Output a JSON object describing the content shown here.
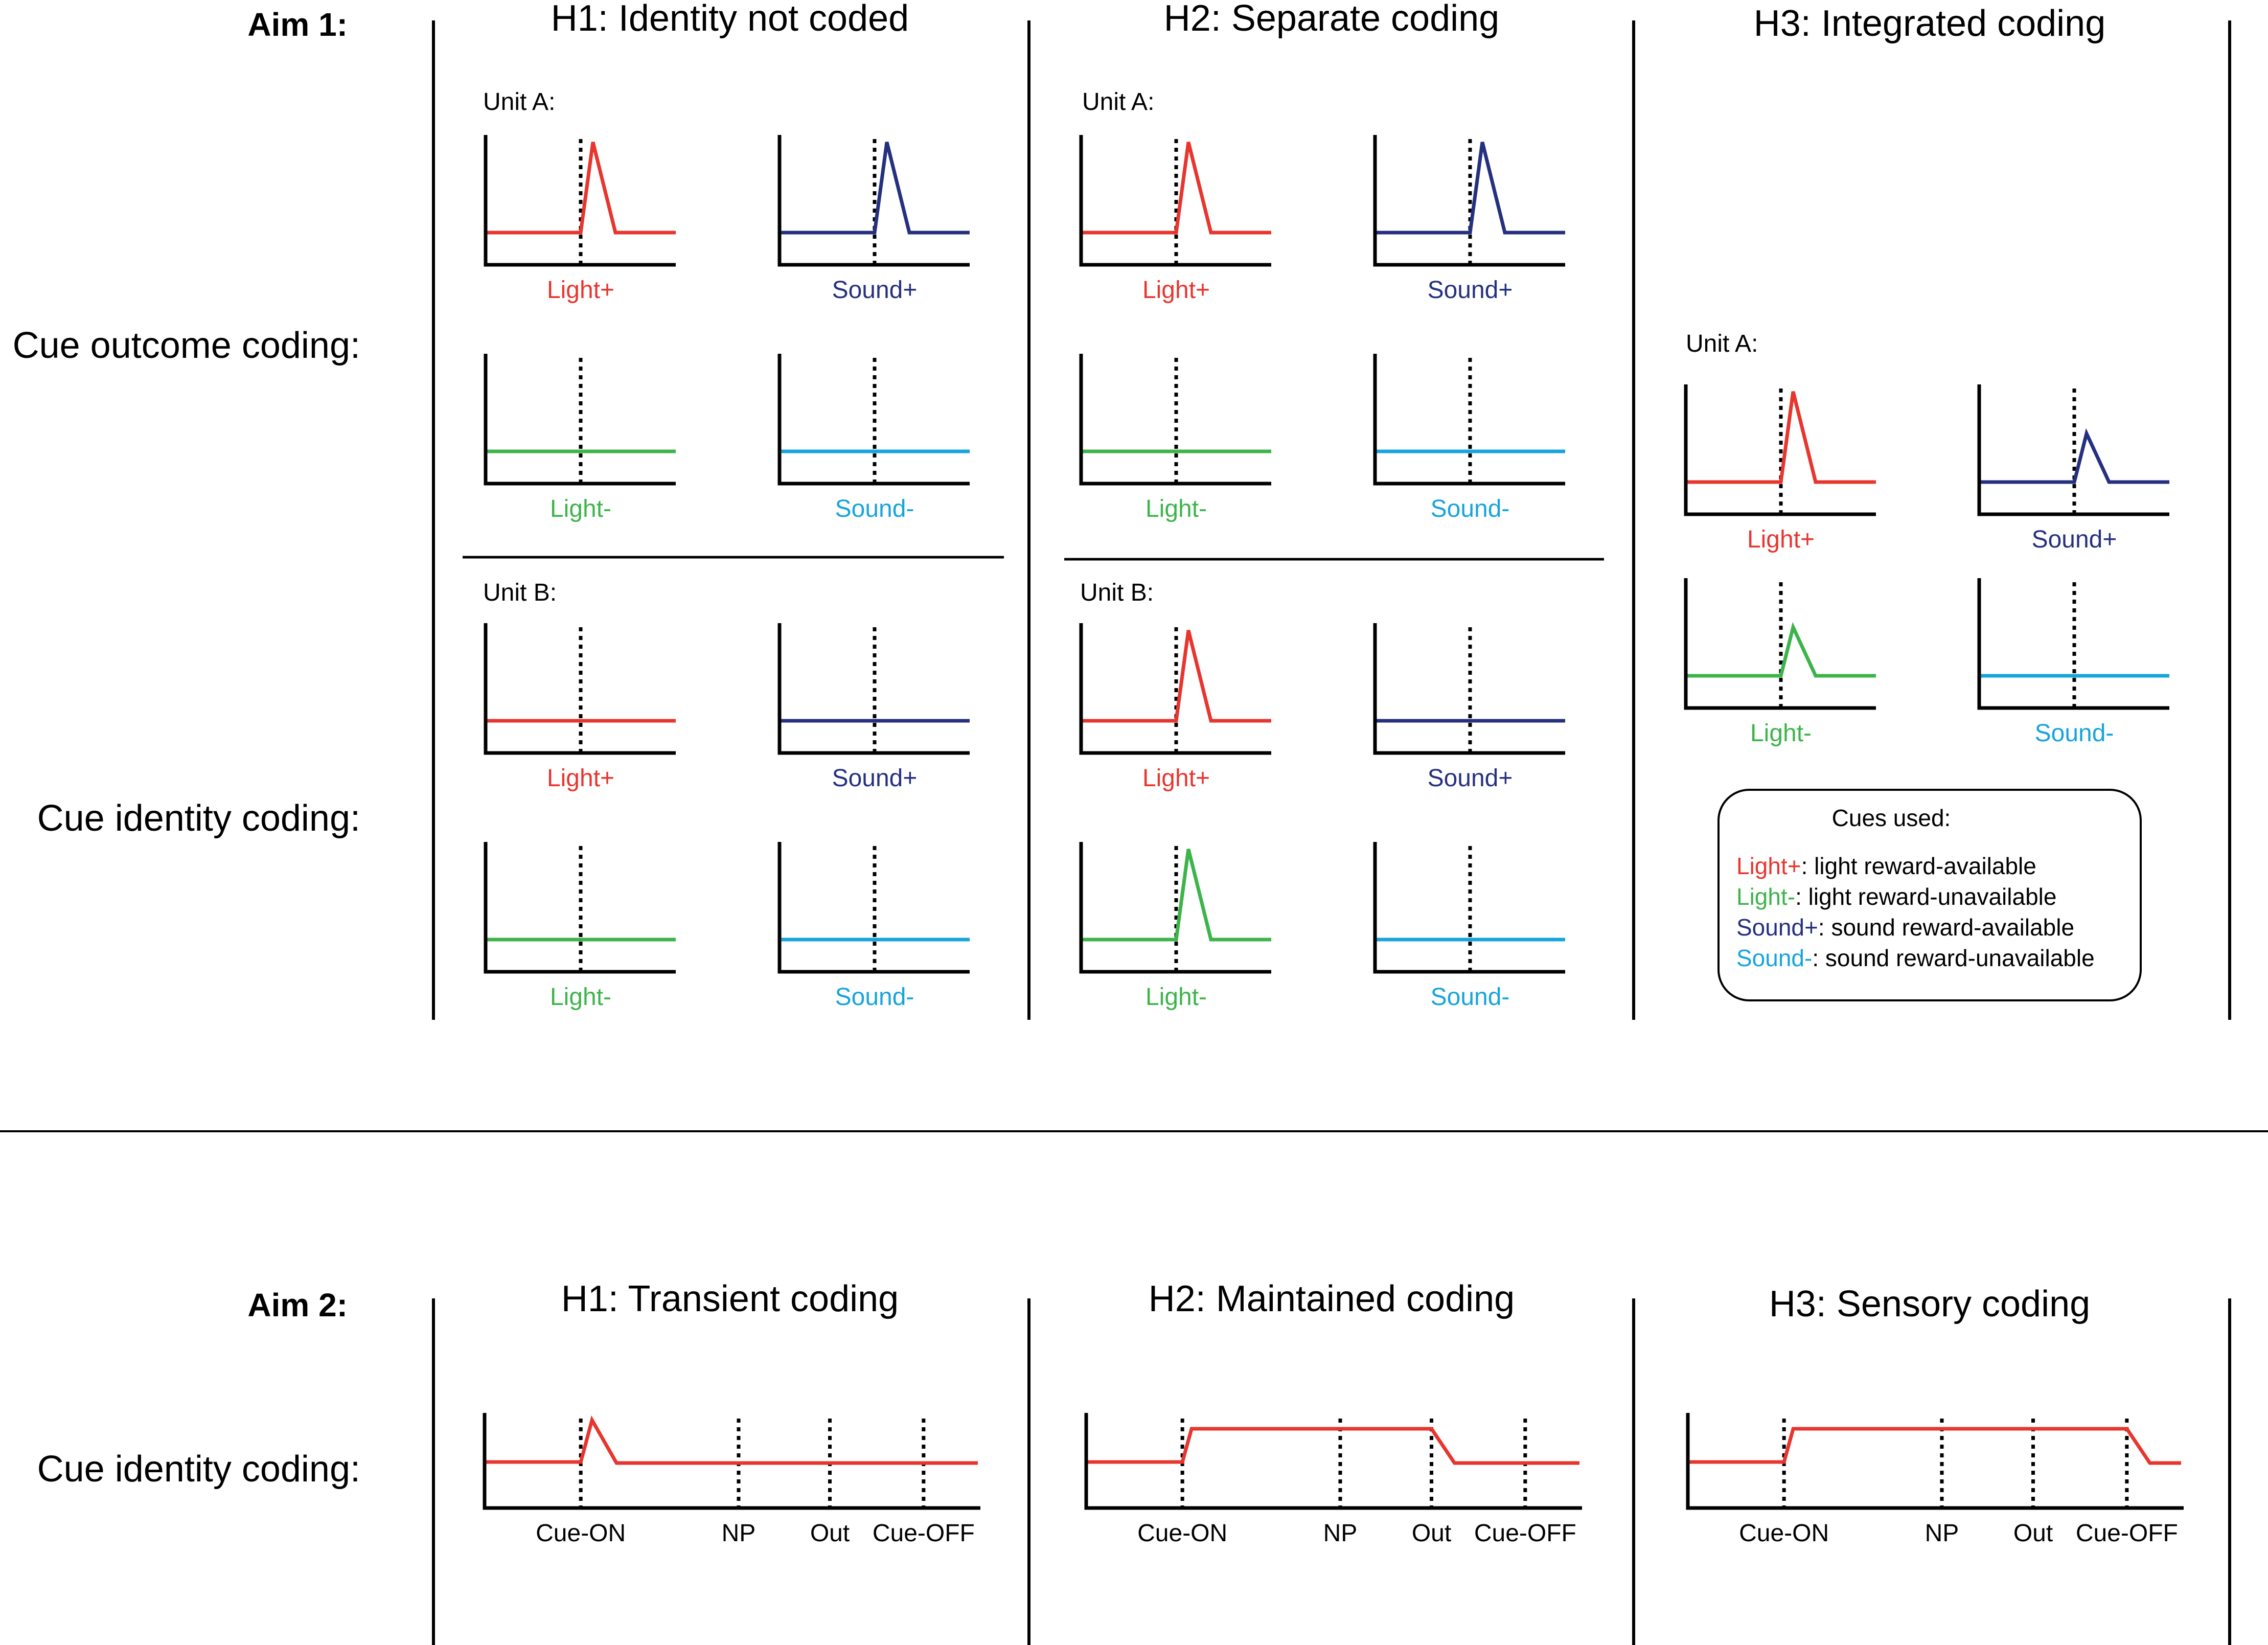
{
  "colors": {
    "light_plus": "#e8352e",
    "sound_plus": "#25307f",
    "light_minus": "#3cb44a",
    "sound_minus": "#16a4dc",
    "ink": "#000000"
  },
  "aim1": {
    "label": "Aim 1:",
    "row_labels": [
      "Cue outcome coding:",
      "Cue identity coding:"
    ],
    "columns": [
      {
        "heading": "H1: Identity not coded",
        "units": [
          {
            "label": "Unit A:",
            "panels": [
              {
                "cue": "Light+",
                "color_key": "light_plus",
                "response": "transient"
              },
              {
                "cue": "Sound+",
                "color_key": "sound_plus",
                "response": "transient"
              },
              {
                "cue": "Light-",
                "color_key": "light_minus",
                "response": "flat"
              },
              {
                "cue": "Sound-",
                "color_key": "sound_minus",
                "response": "flat"
              }
            ]
          },
          {
            "label": "Unit B:",
            "panels": [
              {
                "cue": "Light+",
                "color_key": "light_plus",
                "response": "flat"
              },
              {
                "cue": "Sound+",
                "color_key": "sound_plus",
                "response": "flat"
              },
              {
                "cue": "Light-",
                "color_key": "light_minus",
                "response": "flat"
              },
              {
                "cue": "Sound-",
                "color_key": "sound_minus",
                "response": "flat"
              }
            ]
          }
        ]
      },
      {
        "heading": "H2: Separate coding",
        "units": [
          {
            "label": "Unit A:",
            "panels": [
              {
                "cue": "Light+",
                "color_key": "light_plus",
                "response": "transient"
              },
              {
                "cue": "Sound+",
                "color_key": "sound_plus",
                "response": "transient"
              },
              {
                "cue": "Light-",
                "color_key": "light_minus",
                "response": "flat"
              },
              {
                "cue": "Sound-",
                "color_key": "sound_minus",
                "response": "flat"
              }
            ]
          },
          {
            "label": "Unit B:",
            "panels": [
              {
                "cue": "Light+",
                "color_key": "light_plus",
                "response": "transient"
              },
              {
                "cue": "Sound+",
                "color_key": "sound_plus",
                "response": "flat"
              },
              {
                "cue": "Light-",
                "color_key": "light_minus",
                "response": "transient"
              },
              {
                "cue": "Sound-",
                "color_key": "sound_minus",
                "response": "flat"
              }
            ]
          }
        ]
      },
      {
        "heading": "H3: Integrated coding",
        "units": [
          {
            "label": "Unit A:",
            "panels": [
              {
                "cue": "Light+",
                "color_key": "light_plus",
                "response": "transient"
              },
              {
                "cue": "Sound+",
                "color_key": "sound_plus",
                "response": "transient-small"
              },
              {
                "cue": "Light-",
                "color_key": "light_minus",
                "response": "transient-small"
              },
              {
                "cue": "Sound-",
                "color_key": "sound_minus",
                "response": "flat"
              }
            ]
          }
        ]
      }
    ],
    "legend": {
      "title": "Cues used:",
      "items": [
        {
          "cue": "Light+",
          "text": ": light reward-available",
          "color_key": "light_plus"
        },
        {
          "cue": "Light-",
          "text": ": light reward-unavailable",
          "color_key": "light_minus"
        },
        {
          "cue": "Sound+",
          "text": ": sound reward-available",
          "color_key": "sound_plus"
        },
        {
          "cue": "Sound-",
          "text": ": sound reward-unavailable",
          "color_key": "sound_minus"
        }
      ]
    }
  },
  "aim2": {
    "label": "Aim 2:",
    "row_label": "Cue identity coding:",
    "events": [
      "Cue-ON",
      "NP",
      "Out",
      "Cue-OFF"
    ],
    "columns": [
      {
        "heading": "H1: Transient coding",
        "response": "transient"
      },
      {
        "heading": "H2: Maintained coding",
        "response": "maintained-to-out"
      },
      {
        "heading": "H3: Sensory coding",
        "response": "maintained-to-cue-off"
      }
    ]
  }
}
